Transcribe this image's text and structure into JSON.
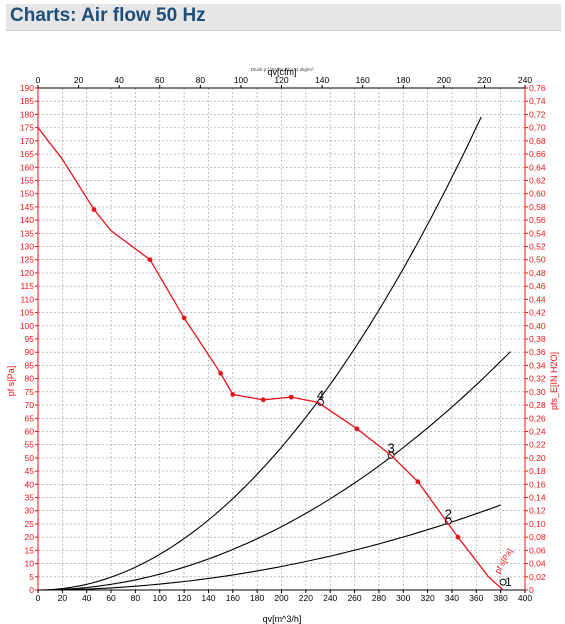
{
  "page": {
    "title": "Charts: Air flow 50 Hz"
  },
  "chart_data": {
    "type": "line",
    "note": "Druck p f.(Pa)für Rho=1,2kg/m³",
    "x_bottom": {
      "label": "qv[m^3/h]",
      "range": [
        0,
        400
      ],
      "tick_step": 20,
      "ticks": [
        "0",
        "20",
        "40",
        "60",
        "80",
        "100",
        "120",
        "140",
        "160",
        "180",
        "200",
        "220",
        "240",
        "260",
        "280",
        "300",
        "320",
        "340",
        "360",
        "380",
        "400"
      ]
    },
    "x_top": {
      "label": "qv[cfm]",
      "range": [
        0,
        240
      ],
      "tick_step": 20,
      "ticks": [
        "0",
        "20",
        "40",
        "60",
        "80",
        "100",
        "120",
        "140",
        "160",
        "180",
        "200",
        "220",
        "240"
      ]
    },
    "y_left": {
      "label": "pf s[Pa]",
      "range": [
        0,
        190
      ],
      "tick_step": 5
    },
    "y_right": {
      "label": "pfs_E[IN H2O]",
      "range": [
        0,
        0.76
      ],
      "tick_step": 0.02
    },
    "grid": true,
    "colors": {
      "fan_curve": "#e8141b",
      "system_curve": "#000000",
      "axis_left_right": "#e8141b",
      "axis_top_bottom": "#000000"
    },
    "fan_curve": {
      "name": "pf s",
      "x": [
        0,
        20,
        46,
        60,
        92,
        120,
        150,
        160,
        185,
        208,
        230,
        262,
        290,
        312,
        345,
        370,
        382
      ],
      "y": [
        175,
        163,
        144,
        136,
        125,
        103,
        82,
        74,
        72,
        73,
        71,
        61,
        51,
        41,
        20,
        5,
        0
      ],
      "markers": [
        [
          46,
          144
        ],
        [
          92,
          125
        ],
        [
          120,
          103
        ],
        [
          150,
          82
        ],
        [
          160,
          74
        ],
        [
          185,
          72
        ],
        [
          208,
          73
        ],
        [
          262,
          61
        ],
        [
          312,
          41
        ],
        [
          345,
          20
        ]
      ]
    },
    "system_curves": [
      {
        "label": "4",
        "x_max": 365,
        "k": 0.0013512,
        "operating_point": [
          232,
          71
        ]
      },
      {
        "label": "3",
        "x_max": 388,
        "k": 0.0005992,
        "operating_point": [
          290,
          51
        ]
      },
      {
        "label": "2",
        "x_max": 383,
        "k": 0.0002227,
        "operating_point": [
          337,
          26
        ]
      }
    ],
    "end_label": {
      "text": "pf s[Pa]",
      "point_label": "1",
      "point": [
        382,
        3
      ]
    }
  }
}
